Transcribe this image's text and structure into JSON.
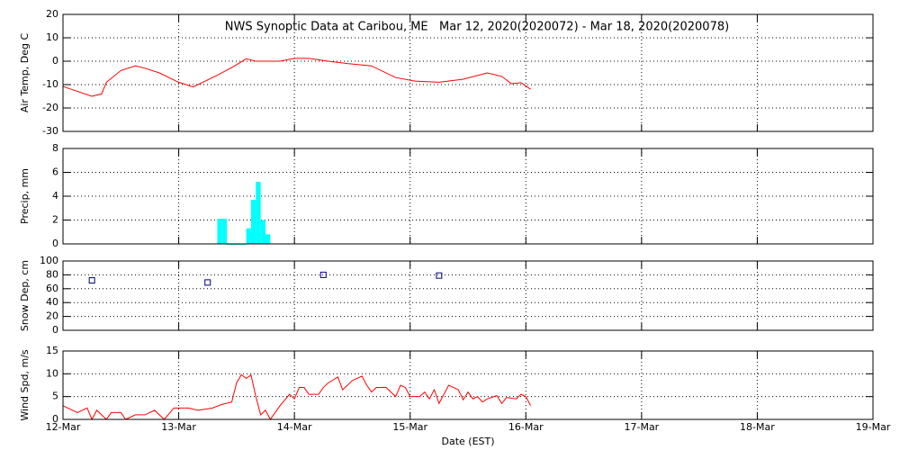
{
  "chart_data": [
    {
      "type": "line",
      "title": "NWS Synoptic Data at Caribou, ME   Mar 12, 2020(2020072) - Mar 18, 2020(2020078)",
      "ylabel": "Air Temp, Deg C",
      "ylim": [
        -30,
        20
      ],
      "yticks": [
        20,
        10,
        0,
        -10,
        -20,
        -30
      ],
      "xlim": [
        0,
        168
      ],
      "xticks": [
        24,
        48,
        72,
        96,
        120,
        144
      ],
      "grid": true,
      "series": [
        {
          "color": "#ff0000",
          "x": [
            0,
            6,
            8,
            9,
            12,
            15,
            17,
            20,
            24,
            27,
            32,
            35,
            38,
            40,
            45,
            48,
            51,
            55,
            59,
            64,
            69,
            73,
            78,
            83,
            88,
            91,
            93,
            95,
            97
          ],
          "values": [
            -10.8,
            -15,
            -14,
            -9,
            -4,
            -2,
            -3,
            -5,
            -9,
            -11,
            -6,
            -2.7,
            1,
            0,
            0,
            1.2,
            1.2,
            0,
            -1,
            -2,
            -7,
            -8.5,
            -9,
            -7.7,
            -5,
            -6.5,
            -9.6,
            -9.2,
            -12
          ]
        }
      ]
    },
    {
      "type": "bar",
      "ylabel": "Precip, mm",
      "ylim": [
        0,
        8
      ],
      "yticks": [
        0,
        2,
        4,
        6,
        8
      ],
      "xlim": [
        0,
        168
      ],
      "xticks": [
        24,
        48,
        72,
        96,
        120,
        144
      ],
      "grid": true,
      "series": [
        {
          "color": "#00ffff",
          "x": [
            32,
            33,
            34,
            35,
            36,
            37,
            38,
            39,
            40,
            41,
            42
          ],
          "values": [
            2.1,
            2.1,
            0,
            0,
            0,
            0,
            1.3,
            3.7,
            5.2,
            2.0,
            0.8
          ]
        }
      ]
    },
    {
      "type": "scatter",
      "ylabel": "Snow Dep, cm",
      "ylim": [
        0,
        100
      ],
      "yticks": [
        0,
        20,
        40,
        60,
        80,
        100
      ],
      "xlim": [
        0,
        168
      ],
      "xticks": [
        24,
        48,
        72,
        96,
        120,
        144
      ],
      "grid": true,
      "series": [
        {
          "color": "#000080",
          "x": [
            6,
            30,
            54,
            78
          ],
          "values": [
            72,
            69,
            80,
            79
          ]
        }
      ]
    },
    {
      "type": "line",
      "ylabel": "Wind Spd, m/s",
      "xlabel": "Date (EST)",
      "ylim": [
        0,
        15
      ],
      "yticks": [
        0,
        5,
        10,
        15
      ],
      "xlim": [
        0,
        168
      ],
      "xticks": [
        {
          "value": 0,
          "label": "12-Mar"
        },
        {
          "value": 24,
          "label": "13-Mar"
        },
        {
          "value": 48,
          "label": "14-Mar"
        },
        {
          "value": 72,
          "label": "15-Mar"
        },
        {
          "value": 96,
          "label": "16-Mar"
        },
        {
          "value": 120,
          "label": "17-Mar"
        },
        {
          "value": 144,
          "label": "18-Mar"
        },
        {
          "value": 168,
          "label": "19-Mar"
        }
      ],
      "grid": true,
      "series": [
        {
          "color": "#ff0000",
          "x": [
            0,
            3,
            5,
            6,
            7,
            9,
            10,
            12,
            13,
            15,
            17,
            19,
            21,
            23,
            26,
            28,
            31,
            33,
            35,
            36,
            37,
            38,
            39,
            40,
            41,
            42,
            43,
            44,
            45,
            47,
            48,
            49,
            50,
            51,
            53,
            54,
            55,
            57,
            58,
            60,
            62,
            63,
            64,
            65,
            67,
            69,
            70,
            71,
            72,
            74,
            75,
            76,
            77,
            78,
            80,
            81,
            82,
            83,
            84,
            85,
            86,
            87,
            88,
            90,
            91,
            92,
            94,
            95,
            96,
            97
          ],
          "values": [
            3,
            1.5,
            2.5,
            0,
            2,
            0,
            1.5,
            1.5,
            0,
            1,
            1,
            2,
            0,
            2.5,
            2.5,
            2,
            2.5,
            3.3,
            3.8,
            8,
            9.8,
            9,
            9.7,
            5,
            1,
            2,
            0,
            1.5,
            3,
            5.5,
            4.5,
            7,
            7,
            5.5,
            5.5,
            7,
            8,
            9.3,
            6.5,
            8.5,
            9.5,
            7.5,
            6,
            7,
            7,
            5,
            7.5,
            7,
            5,
            5,
            6,
            4.5,
            6.5,
            3.5,
            7.5,
            7,
            6.5,
            4.3,
            6,
            4.5,
            5,
            3.8,
            4.5,
            5.2,
            3.5,
            4.8,
            4.5,
            5.5,
            5,
            3
          ]
        }
      ]
    }
  ]
}
